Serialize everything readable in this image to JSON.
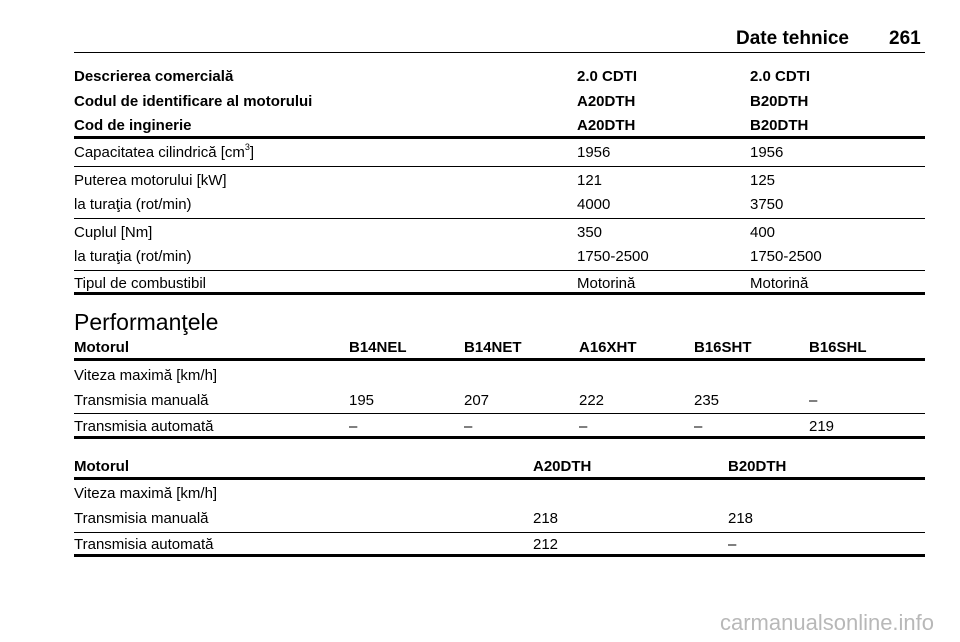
{
  "header": {
    "title": "Date tehnice",
    "page_number": "261"
  },
  "table1": {
    "head_rows": [
      [
        "Descrierea comercială",
        "2.0 CDTI",
        "2.0 CDTI"
      ],
      [
        "Codul de identificare al motorului",
        "A20DTH",
        "B20DTH"
      ],
      [
        "Cod de inginerie",
        "A20DTH",
        "B20DTH"
      ]
    ],
    "body_rows": [
      {
        "label": "Capacitatea cilindrică [cm",
        "sup": "3",
        "label_tail": "]",
        "v1": "1956",
        "v2": "1956"
      },
      {
        "label": "Puterea motorului [kW]",
        "v1": "121",
        "v2": "125"
      },
      {
        "label": "la turaţia (rot/min)",
        "v1": "4000",
        "v2": "3750"
      },
      {
        "label": "Cuplul [Nm]",
        "v1": "350",
        "v2": "400"
      },
      {
        "label": "la turaţia (rot/min)",
        "v1": "1750-2500",
        "v2": "1750-2500"
      },
      {
        "label": "Tipul de combustibil",
        "v1": "Motorină",
        "v2": "Motorină"
      }
    ]
  },
  "section_title": "Performanţele",
  "table2": {
    "head": [
      "Motorul",
      "B14NEL",
      "B14NET",
      "A16XHT",
      "B16SHT",
      "B16SHL"
    ],
    "rows": [
      [
        "Viteza maximă [km/h]",
        "",
        "",
        "",
        "",
        ""
      ],
      [
        "Transmisia manuală",
        "195",
        "207",
        "222",
        "235",
        "–"
      ],
      [
        "Transmisia automată",
        "–",
        "–",
        "–",
        "–",
        "219"
      ]
    ]
  },
  "table3": {
    "head": [
      "Motorul",
      "A20DTH",
      "B20DTH"
    ],
    "rows": [
      [
        "Viteza maximă [km/h]",
        "",
        ""
      ],
      [
        "Transmisia manuală",
        "218",
        "218"
      ],
      [
        "Transmisia automată",
        "212",
        "–"
      ]
    ]
  },
  "watermark": "carmanualsonline.info"
}
